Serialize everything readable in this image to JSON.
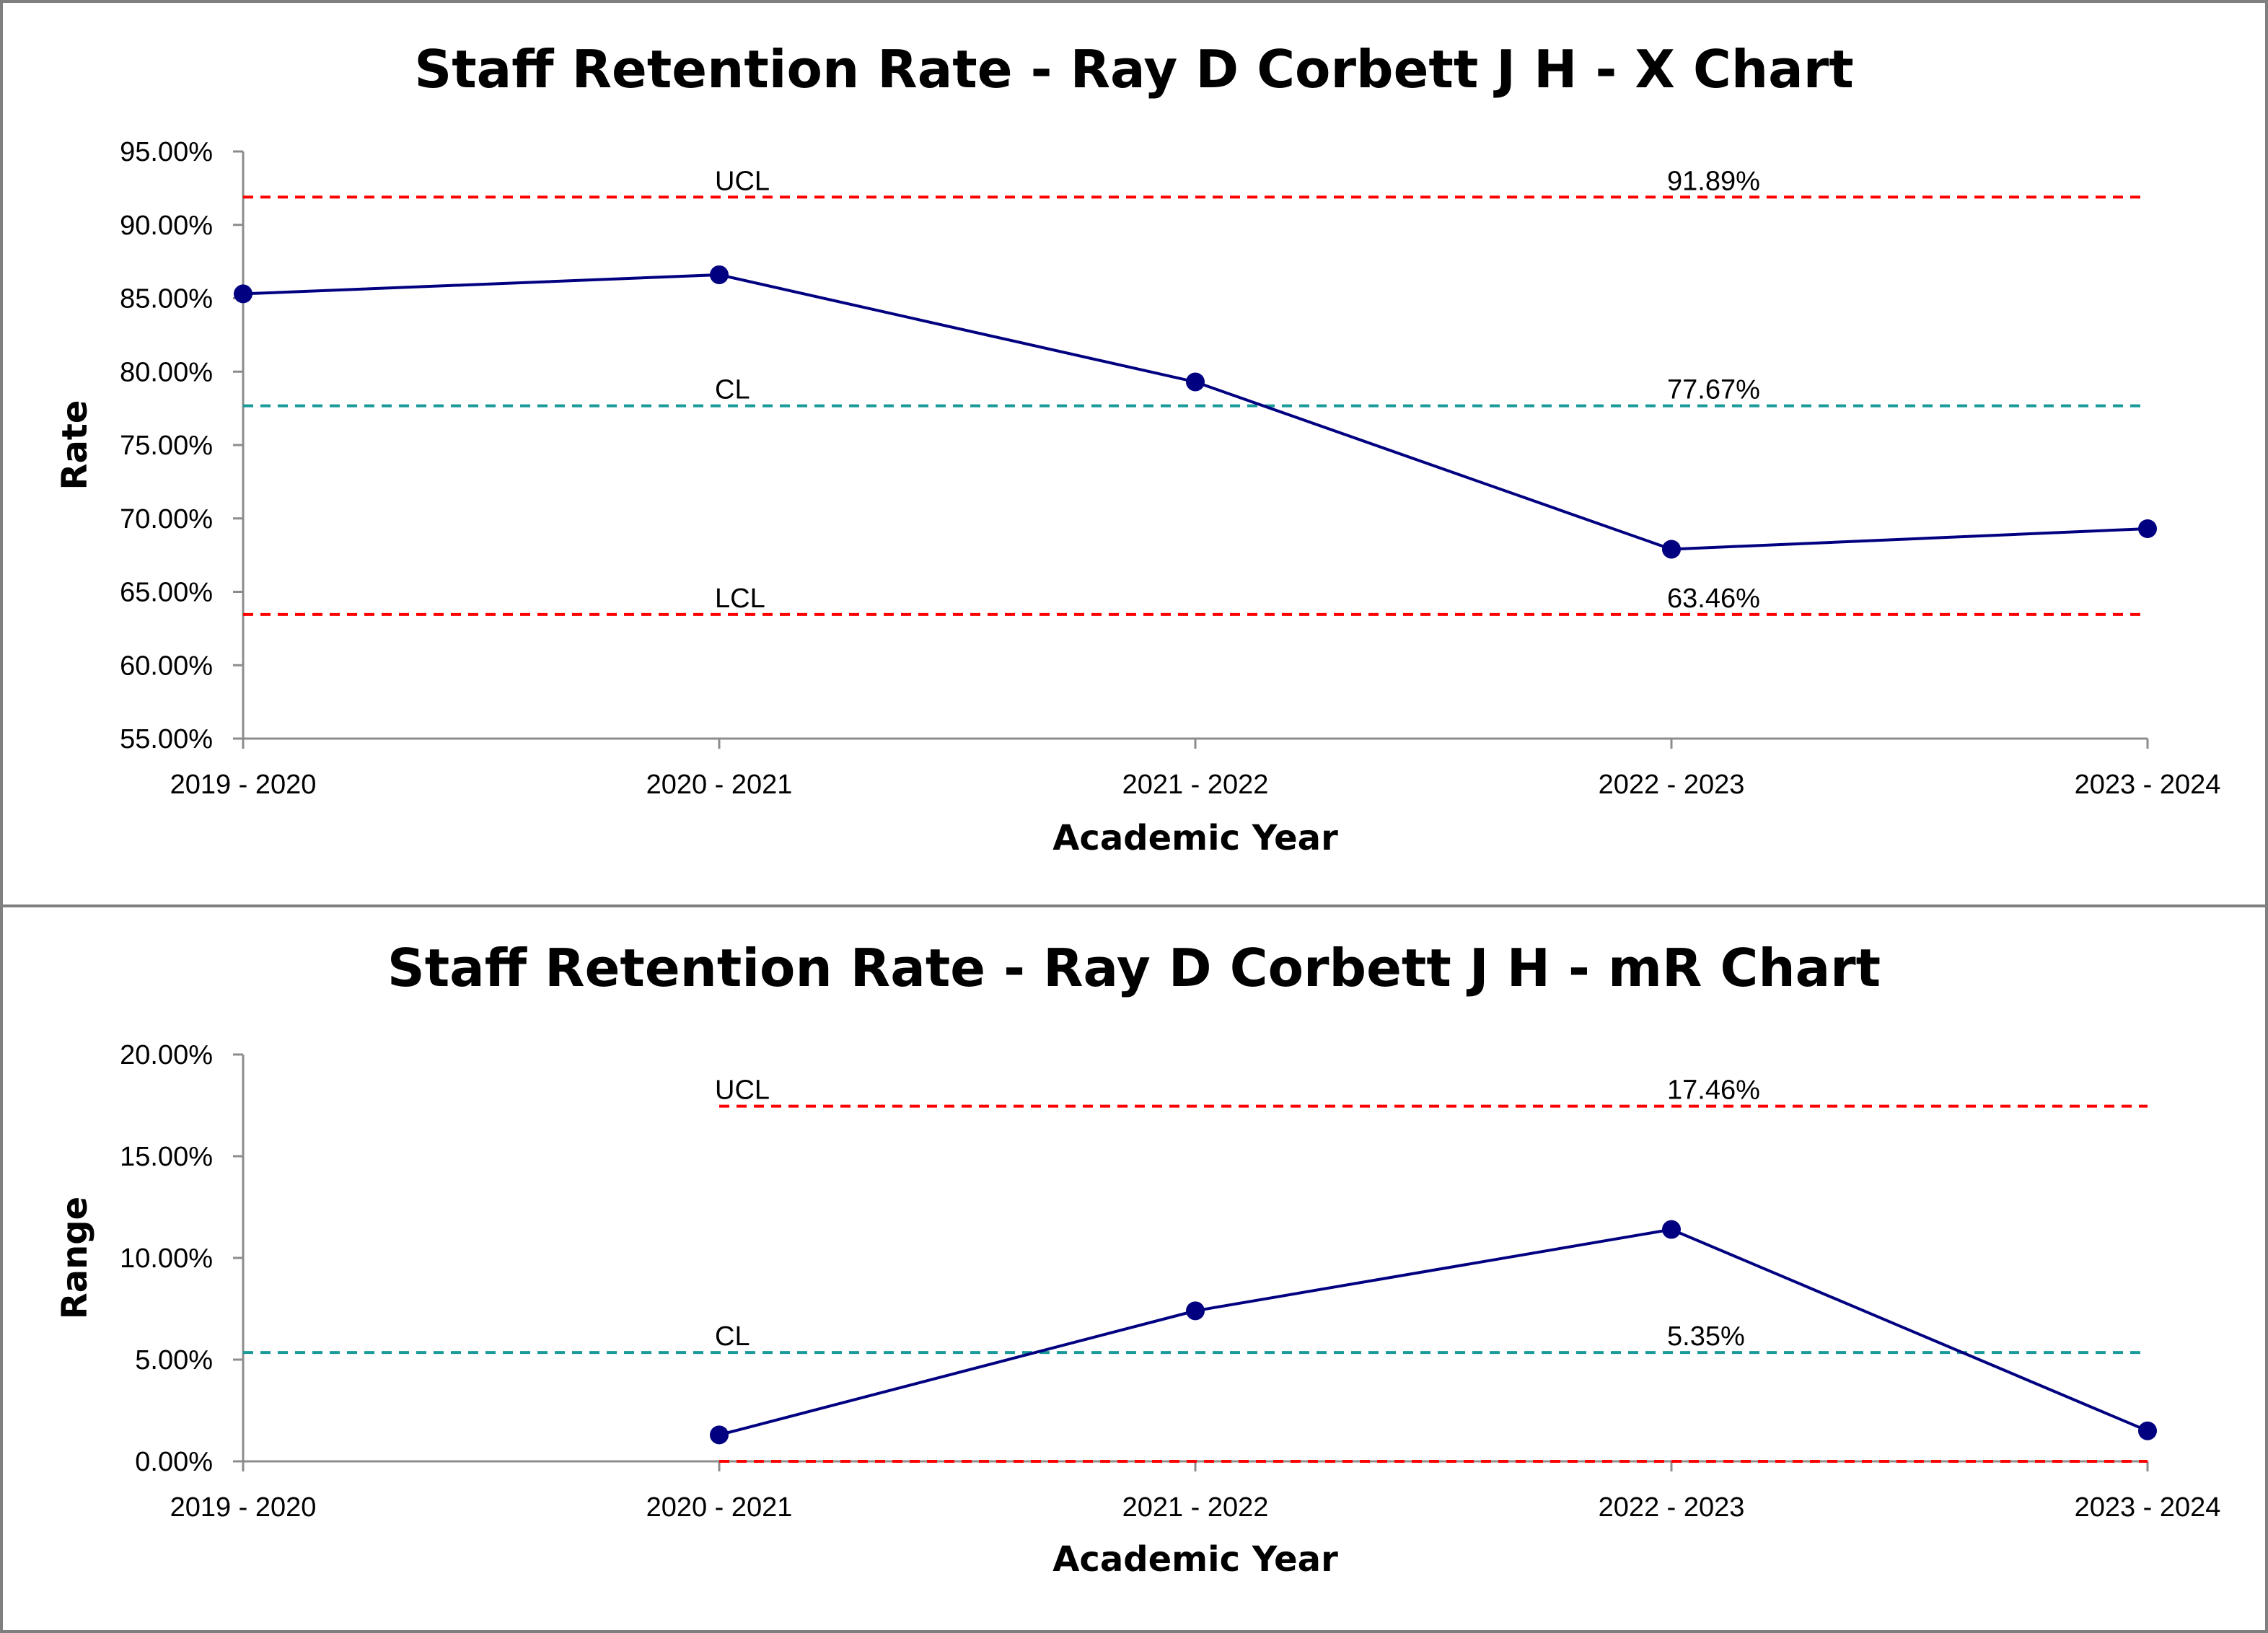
{
  "chart_data": [
    {
      "type": "line",
      "title": "Staff Retention Rate - Ray D Corbett J H - X Chart",
      "xlabel": "Academic Year",
      "ylabel": "Rate",
      "categories": [
        "2019 - 2020",
        "2020 - 2021",
        "2021 - 2022",
        "2022 - 2023",
        "2023 - 2024"
      ],
      "series": [
        {
          "values": [
            85.3,
            86.6,
            79.3,
            67.9,
            69.3
          ]
        }
      ],
      "ylim": [
        55,
        95
      ],
      "yticks": [
        95,
        90,
        85,
        80,
        75,
        70,
        65,
        60,
        55
      ],
      "ytick_labels": [
        "95.00%",
        "90.00%",
        "85.00%",
        "80.00%",
        "75.00%",
        "70.00%",
        "65.00%",
        "60.00%",
        "55.00%"
      ],
      "control_lines": [
        {
          "name": "UCL",
          "value": 91.89,
          "value_label": "91.89%",
          "color": "#ff0000",
          "start_index": 0
        },
        {
          "name": "CL",
          "value": 77.67,
          "value_label": "77.67%",
          "color": "#1a9a9a",
          "start_index": 0
        },
        {
          "name": "LCL",
          "value": 63.46,
          "value_label": "63.46%",
          "color": "#ff0000",
          "start_index": 0
        }
      ],
      "series_color": "#000080",
      "grid": false
    },
    {
      "type": "line",
      "title": "Staff Retention Rate - Ray D Corbett J H - mR Chart",
      "xlabel": "Academic Year",
      "ylabel": "Range",
      "categories": [
        "2019 - 2020",
        "2020 - 2021",
        "2021 - 2022",
        "2022 - 2023",
        "2023 - 2024"
      ],
      "series": [
        {
          "values": [
            null,
            1.3,
            7.4,
            11.4,
            1.5
          ]
        }
      ],
      "ylim": [
        0,
        20
      ],
      "yticks": [
        20,
        15,
        10,
        5,
        0
      ],
      "ytick_labels": [
        "20.00%",
        "15.00%",
        "10.00%",
        "5.00%",
        "0.00%"
      ],
      "control_lines": [
        {
          "name": "UCL",
          "value": 17.46,
          "value_label": "17.46%",
          "color": "#ff0000",
          "start_index": 1
        },
        {
          "name": "CL",
          "value": 5.35,
          "value_label": "5.35%",
          "color": "#1a9a9a",
          "start_index": 0
        },
        {
          "name": "LCL",
          "value": 0,
          "value_label": "",
          "color": "#ff0000",
          "start_index": 1,
          "show_label": false
        }
      ],
      "series_color": "#000080",
      "grid": false
    }
  ]
}
